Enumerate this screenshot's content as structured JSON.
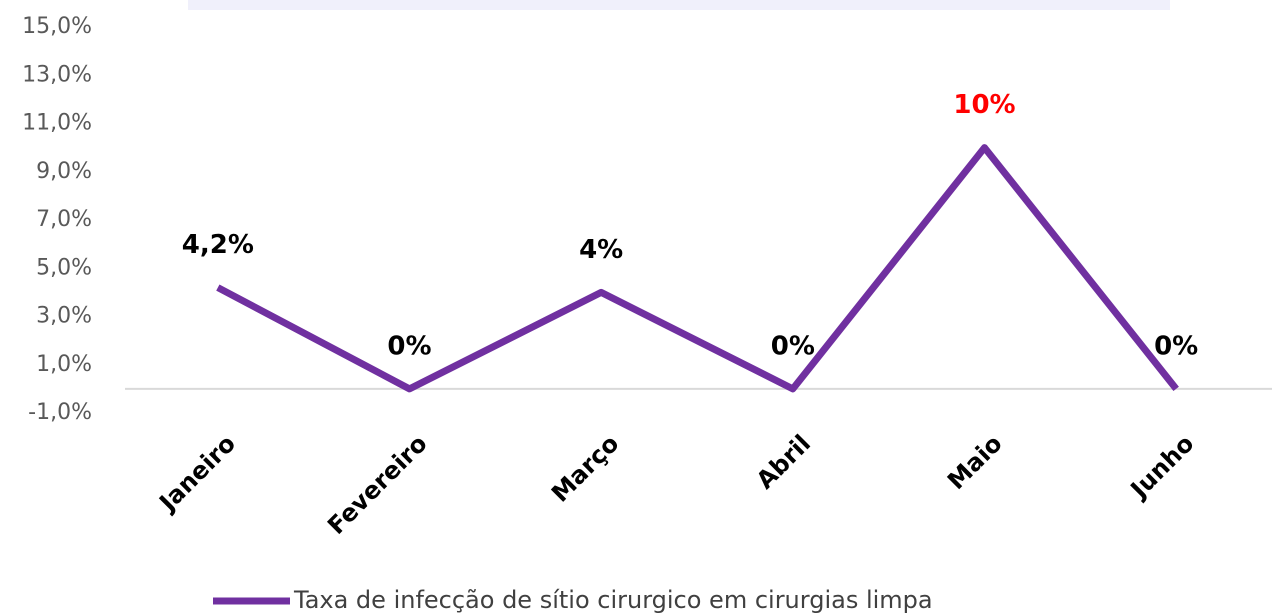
{
  "chart_data": {
    "type": "line",
    "categories": [
      "Janeiro",
      "Fevereiro",
      "Março",
      "Abril",
      "Maio",
      "Junho"
    ],
    "series": [
      {
        "name": "Taxa de infecção de sítio cirurgico em cirurgias limpa",
        "color": "#7030a0",
        "values": [
          4.2,
          0,
          4,
          0,
          10,
          0
        ],
        "value_labels": [
          "4,2%",
          "0%",
          "4%",
          "0%",
          "10%",
          "0%"
        ],
        "value_label_colors": [
          "#000000",
          "#000000",
          "#000000",
          "#000000",
          "#ff0000",
          "#000000"
        ]
      }
    ],
    "ylim": [
      -1,
      15
    ],
    "yticks": [
      {
        "value": -1,
        "label": "-1,0%"
      },
      {
        "value": 1,
        "label": "1,0%"
      },
      {
        "value": 3,
        "label": "3,0%"
      },
      {
        "value": 5,
        "label": "5,0%"
      },
      {
        "value": 7,
        "label": "7,0%"
      },
      {
        "value": 9,
        "label": "9,0%"
      },
      {
        "value": 11,
        "label": "11,0%"
      },
      {
        "value": 13,
        "label": "13,0%"
      },
      {
        "value": 15,
        "label": "15,0%"
      }
    ],
    "grid": false,
    "legend": "bottom"
  }
}
